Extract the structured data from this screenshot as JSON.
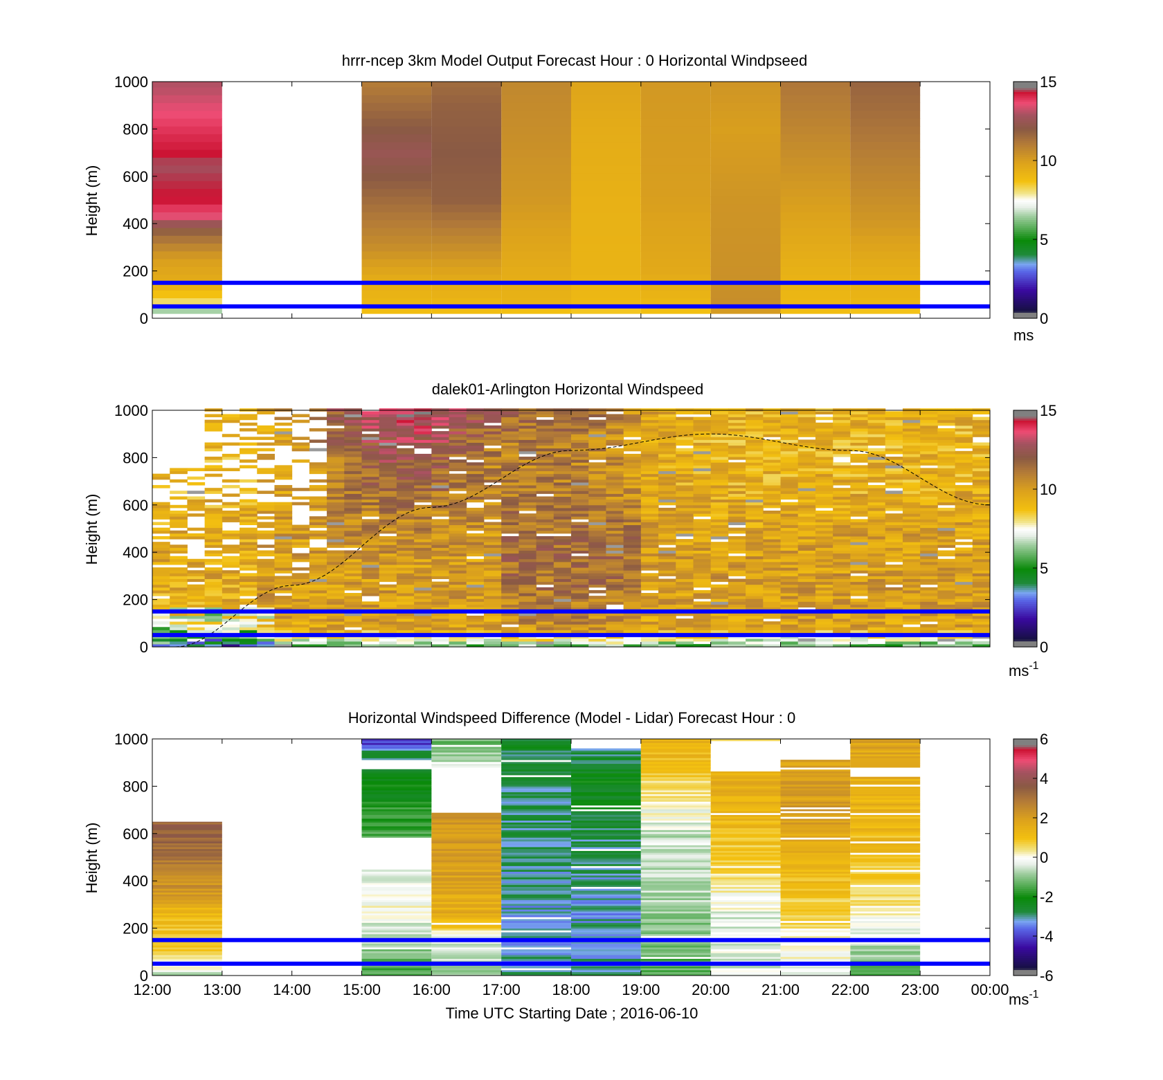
{
  "figure": {
    "x_tick_labels": [
      "12:00",
      "13:00",
      "14:00",
      "15:00",
      "16:00",
      "17:00",
      "18:00",
      "19:00",
      "20:00",
      "21:00",
      "22:00",
      "23:00",
      "00:00"
    ],
    "x_axis_label": "Time UTC  Starting Date ; 2016-06-10",
    "y_axis_label": "Height (m)",
    "y_tick_labels": [
      "0",
      "200",
      "400",
      "600",
      "800",
      "1000"
    ],
    "reference_lines_color": "#0000ff"
  },
  "chart_data": [
    {
      "type": "heatmap",
      "title": "hrrr-ncep 3km Model Output   Forecast Hour : 0 Horizontal Windpseed",
      "xlim": [
        "12:00",
        "00:00"
      ],
      "ylim": [
        0,
        1000
      ],
      "ylabel": "Height (m)",
      "colorbar": {
        "min": 0,
        "max": 15,
        "ticks": [
          "0",
          "5",
          "10",
          "15"
        ],
        "unit_label": "ms",
        "unit_sup": ""
      },
      "reference_lines_m": [
        50,
        150
      ],
      "columns": [
        {
          "hour": 12,
          "profile": [
            [
              0,
              3.5
            ],
            [
              20,
              5.5
            ],
            [
              60,
              8
            ],
            [
              90,
              8.5
            ],
            [
              150,
              9.5
            ],
            [
              250,
              10
            ],
            [
              320,
              11
            ],
            [
              380,
              12
            ],
            [
              430,
              13.5
            ],
            [
              500,
              14.3
            ],
            [
              650,
              14.5
            ],
            [
              780,
              14
            ],
            [
              900,
              13.5
            ],
            [
              950,
              13.2
            ],
            [
              1000,
              13
            ]
          ]
        },
        {
          "hour": 15,
          "profile": [
            [
              0,
              7
            ],
            [
              40,
              9
            ],
            [
              150,
              9.4
            ],
            [
              300,
              10.5
            ],
            [
              500,
              11.5
            ],
            [
              700,
              12.5
            ],
            [
              900,
              11.5
            ],
            [
              1000,
              11
            ]
          ]
        },
        {
          "hour": 16,
          "profile": [
            [
              0,
              7
            ],
            [
              40,
              9
            ],
            [
              150,
              9.5
            ],
            [
              300,
              10.5
            ],
            [
              500,
              11.8
            ],
            [
              700,
              12
            ],
            [
              900,
              11.8
            ],
            [
              1000,
              11.5
            ]
          ]
        },
        {
          "hour": 17,
          "profile": [
            [
              0,
              4
            ],
            [
              40,
              9.2
            ],
            [
              200,
              9.5
            ],
            [
              500,
              10.2
            ],
            [
              800,
              10.5
            ],
            [
              1000,
              10.7
            ]
          ]
        },
        {
          "hour": 18,
          "profile": [
            [
              0,
              4.5
            ],
            [
              40,
              9
            ],
            [
              200,
              9.2
            ],
            [
              500,
              9.3
            ],
            [
              800,
              9.5
            ],
            [
              1000,
              9.8
            ]
          ]
        },
        {
          "hour": 19,
          "profile": [
            [
              0,
              6
            ],
            [
              40,
              9
            ],
            [
              200,
              9.6
            ],
            [
              500,
              10
            ],
            [
              800,
              10.1
            ],
            [
              1000,
              10.2
            ]
          ]
        },
        {
          "hour": 20,
          "profile": [
            [
              0,
              9.5
            ],
            [
              60,
              10.5
            ],
            [
              200,
              10.4
            ],
            [
              500,
              10.3
            ],
            [
              800,
              10
            ],
            [
              1000,
              10.3
            ]
          ]
        },
        {
          "hour": 21,
          "profile": [
            [
              0,
              7
            ],
            [
              40,
              9
            ],
            [
              200,
              9.3
            ],
            [
              400,
              9.8
            ],
            [
              700,
              10.5
            ],
            [
              900,
              11
            ],
            [
              1000,
              11.2
            ]
          ]
        },
        {
          "hour": 22,
          "profile": [
            [
              0,
              4
            ],
            [
              40,
              9.1
            ],
            [
              200,
              9.4
            ],
            [
              400,
              10.2
            ],
            [
              700,
              11
            ],
            [
              900,
              11.5
            ],
            [
              1000,
              11.7
            ]
          ]
        }
      ]
    },
    {
      "type": "heatmap",
      "title": "dalek01-Arlington  Horizontal Windspeed",
      "xlim": [
        "12:00",
        "00:00"
      ],
      "ylim": [
        0,
        1000
      ],
      "ylabel": "Height (m)",
      "colorbar": {
        "min": 0,
        "max": 15,
        "ticks": [
          "0",
          "5",
          "10",
          "15"
        ],
        "unit_label": "ms",
        "unit_sup": "-1"
      },
      "reference_lines_m": [
        50,
        150
      ],
      "boundary_layer_curve": {
        "x": [
          "12:20",
          "14:00",
          "16:00",
          "18:00",
          "20:00",
          "22:00",
          "00:00"
        ],
        "y_m": [
          0,
          260,
          590,
          830,
          900,
          830,
          600
        ]
      },
      "lidar_field_description": "columns every ~15 min from 12:00 to 00:00; low speeds near surface (green/white), strong winds 14:00-17:00 upper levels (red), moderate 9-11 m/s elsewhere"
    },
    {
      "type": "heatmap",
      "title": "Horizontal Windspeed Difference (Model - Lidar) Forecast Hour : 0",
      "xlim": [
        "12:00",
        "00:00"
      ],
      "ylim": [
        0,
        1000
      ],
      "ylabel": "Height (m)",
      "xlabel": "Time UTC  Starting Date ; 2016-06-10",
      "colorbar": {
        "min": -6,
        "max": 6,
        "ticks": [
          "-6",
          "-4",
          "-2",
          "0",
          "2",
          "4",
          "6"
        ],
        "unit_label": "ms",
        "unit_sup": "-1"
      },
      "reference_lines_m": [
        50,
        150
      ],
      "columns": [
        {
          "hour": 12,
          "top": 650,
          "profile": [
            [
              0,
              -0.5
            ],
            [
              100,
              0.5
            ],
            [
              250,
              1.2
            ],
            [
              400,
              2.5
            ],
            [
              550,
              3.2
            ],
            [
              650,
              3.5
            ]
          ]
        },
        {
          "hour": 15,
          "top": 1000,
          "gaps": [
            [
              450,
              580
            ],
            [
              870,
              910
            ]
          ],
          "profile": [
            [
              0,
              -1.5
            ],
            [
              150,
              -0.7
            ],
            [
              300,
              0
            ],
            [
              450,
              -0.5
            ],
            [
              600,
              -1.5
            ],
            [
              800,
              -2.2
            ],
            [
              950,
              -3
            ],
            [
              980,
              -4
            ]
          ]
        },
        {
          "hour": 16,
          "top": 1000,
          "gaps": [
            [
              690,
              880
            ]
          ],
          "profile": [
            [
              0,
              -1
            ],
            [
              150,
              -0.3
            ],
            [
              250,
              1.5
            ],
            [
              500,
              2
            ],
            [
              690,
              2.2
            ],
            [
              900,
              -0.5
            ],
            [
              1000,
              -1.2
            ]
          ]
        },
        {
          "hour": 17,
          "top": 1000,
          "profile": [
            [
              0,
              -3
            ],
            [
              200,
              -3.2
            ],
            [
              500,
              -3
            ],
            [
              800,
              -2.8
            ],
            [
              1000,
              -2.5
            ]
          ]
        },
        {
          "hour": 18,
          "top": 960,
          "profile": [
            [
              0,
              -3
            ],
            [
              300,
              -3.2
            ],
            [
              600,
              -2.8
            ],
            [
              800,
              -2.2
            ],
            [
              960,
              -2.8
            ]
          ]
        },
        {
          "hour": 19,
          "top": 1000,
          "profile": [
            [
              0,
              -1.5
            ],
            [
              300,
              -0.8
            ],
            [
              600,
              -0.5
            ],
            [
              800,
              0.5
            ],
            [
              1000,
              1.5
            ]
          ]
        },
        {
          "hour": 20,
          "top": 1000,
          "gaps": [
            [
              870,
              990
            ]
          ],
          "profile": [
            [
              0,
              -0.3
            ],
            [
              250,
              -0.3
            ],
            [
              400,
              0.3
            ],
            [
              600,
              1
            ],
            [
              800,
              1.5
            ],
            [
              1000,
              0.8
            ]
          ]
        },
        {
          "hour": 21,
          "top": 1000,
          "gaps": [
            [
              910,
              990
            ]
          ],
          "profile": [
            [
              0,
              -0.3
            ],
            [
              250,
              0.5
            ],
            [
              500,
              1.5
            ],
            [
              700,
              2
            ],
            [
              900,
              1.8
            ],
            [
              1000,
              2.8
            ]
          ]
        },
        {
          "hour": 22,
          "top": 1000,
          "gaps": [
            [
              840,
              880
            ]
          ],
          "profile": [
            [
              0,
              -1.5
            ],
            [
              150,
              -0.5
            ],
            [
              300,
              0.3
            ],
            [
              500,
              1
            ],
            [
              700,
              1.3
            ],
            [
              900,
              1.6
            ],
            [
              1000,
              2
            ]
          ]
        }
      ]
    }
  ]
}
